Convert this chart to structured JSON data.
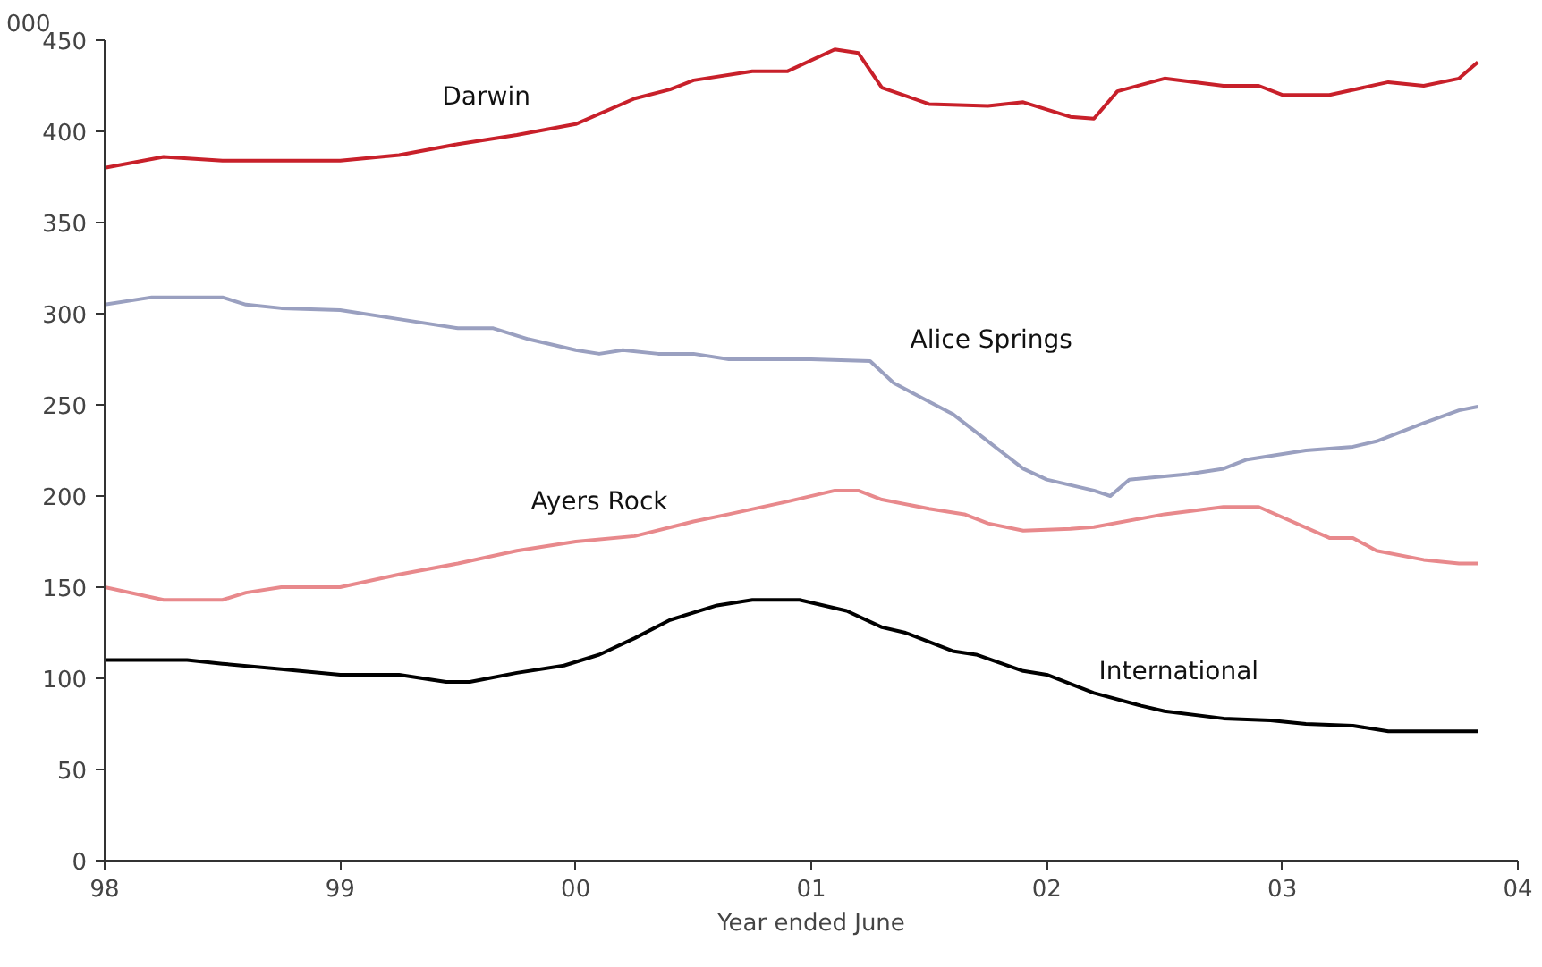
{
  "chart_data": {
    "type": "line",
    "xlabel": "Year ended June",
    "ylabel": "000",
    "xlim": [
      1998,
      2004
    ],
    "ylim": [
      0,
      450
    ],
    "xticks": [
      {
        "value": 1998,
        "label": "98"
      },
      {
        "value": 1999,
        "label": "99"
      },
      {
        "value": 2000,
        "label": "00"
      },
      {
        "value": 2001,
        "label": "01"
      },
      {
        "value": 2002,
        "label": "02"
      },
      {
        "value": 2003,
        "label": "03"
      },
      {
        "value": 2004,
        "label": "04"
      }
    ],
    "yticks": [
      0,
      50,
      100,
      150,
      200,
      250,
      300,
      350,
      400,
      450
    ],
    "grid": false,
    "legend": false,
    "marker": "none",
    "line_style": "solid",
    "series": [
      {
        "name": "Darwin",
        "color": "#c8202a",
        "x": [
          1998.0,
          1998.25,
          1998.5,
          1998.75,
          1999.0,
          1999.25,
          1999.5,
          1999.75,
          2000.0,
          2000.25,
          2000.4,
          2000.5,
          2000.75,
          2000.9,
          2001.1,
          2001.2,
          2001.3,
          2001.5,
          2001.75,
          2001.9,
          2002.1,
          2002.2,
          2002.3,
          2002.5,
          2002.75,
          2002.9,
          2003.0,
          2003.2,
          2003.45,
          2003.6,
          2003.75,
          2003.83
        ],
        "values": [
          380,
          386,
          384,
          384,
          384,
          387,
          393,
          398,
          404,
          418,
          423,
          428,
          433,
          433,
          445,
          443,
          424,
          415,
          414,
          416,
          408,
          407,
          422,
          429,
          425,
          425,
          420,
          420,
          427,
          425,
          429,
          438
        ]
      },
      {
        "name": "Alice Springs",
        "color": "#9aa0c0",
        "x": [
          1998.0,
          1998.2,
          1998.5,
          1998.6,
          1998.75,
          1999.0,
          1999.25,
          1999.5,
          1999.65,
          1999.8,
          2000.0,
          2000.1,
          2000.2,
          2000.35,
          2000.5,
          2000.65,
          2000.9,
          2001.0,
          2001.25,
          2001.35,
          2001.6,
          2001.9,
          2002.0,
          2002.2,
          2002.27,
          2002.35,
          2002.6,
          2002.75,
          2002.85,
          2003.1,
          2003.3,
          2003.4,
          2003.6,
          2003.75,
          2003.83
        ],
        "values": [
          305,
          309,
          309,
          305,
          303,
          302,
          297,
          292,
          292,
          286,
          280,
          278,
          280,
          278,
          278,
          275,
          275,
          275,
          274,
          262,
          245,
          215,
          209,
          203,
          200,
          209,
          212,
          215,
          220,
          225,
          227,
          230,
          240,
          247,
          249
        ]
      },
      {
        "name": "Ayers Rock",
        "color": "#e8898c",
        "x": [
          1998.0,
          1998.25,
          1998.5,
          1998.6,
          1998.75,
          1999.0,
          1999.25,
          1999.5,
          1999.75,
          2000.0,
          2000.25,
          2000.5,
          2000.65,
          2000.9,
          2001.1,
          2001.2,
          2001.3,
          2001.5,
          2001.65,
          2001.75,
          2001.9,
          2002.1,
          2002.2,
          2002.5,
          2002.75,
          2002.9,
          2003.2,
          2003.3,
          2003.4,
          2003.6,
          2003.75,
          2003.83
        ],
        "values": [
          150,
          143,
          143,
          147,
          150,
          150,
          157,
          163,
          170,
          175,
          178,
          186,
          190,
          197,
          203,
          203,
          198,
          193,
          190,
          185,
          181,
          182,
          183,
          190,
          194,
          194,
          177,
          177,
          170,
          165,
          163,
          163
        ]
      },
      {
        "name": "International",
        "color": "#000000",
        "x": [
          1998.0,
          1998.35,
          1998.5,
          1998.75,
          1999.0,
          1999.25,
          1999.45,
          1999.55,
          1999.75,
          1999.95,
          2000.1,
          2000.25,
          2000.4,
          2000.6,
          2000.75,
          2000.95,
          2001.15,
          2001.3,
          2001.4,
          2001.6,
          2001.7,
          2001.9,
          2002.0,
          2002.2,
          2002.4,
          2002.5,
          2002.75,
          2002.95,
          2003.1,
          2003.3,
          2003.45,
          2003.83
        ],
        "values": [
          110,
          110,
          108,
          105,
          102,
          102,
          98,
          98,
          103,
          107,
          113,
          122,
          132,
          140,
          143,
          143,
          137,
          128,
          125,
          115,
          113,
          104,
          102,
          92,
          85,
          82,
          78,
          77,
          75,
          74,
          71,
          71
        ]
      }
    ]
  }
}
